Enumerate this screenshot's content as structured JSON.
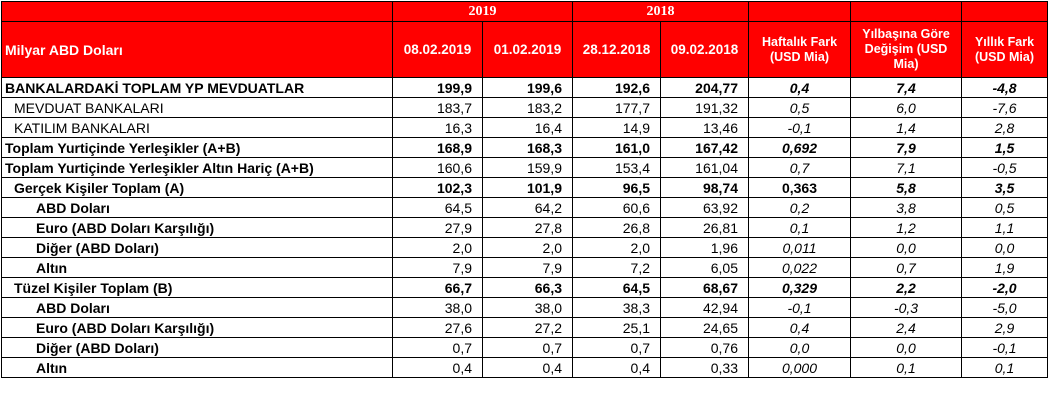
{
  "header": {
    "year_2019": "2019",
    "year_2018": "2018",
    "unit_label": "Milyar ABD Doları",
    "dates": [
      "08.02.2019",
      "01.02.2019",
      "28.12.2018",
      "09.02.2018"
    ],
    "weekly_diff": "Haftalık Fark (USD Mia)",
    "ytd_change": "Yılbaşına Göre Değişim (USD Mia)",
    "annual_diff": "Yıllık Fark (USD Mia)"
  },
  "rows": [
    {
      "label": "BANKALARDAKİ TOPLAM YP MEVDUATLAR",
      "v1": "199,9",
      "v2": "199,6",
      "v3": "192,6",
      "v4": "204,77",
      "d1": "0,4",
      "d2": "7,4",
      "d3": "-4,8"
    },
    {
      "label": "MEVDUAT BANKALARI",
      "v1": "183,7",
      "v2": "183,2",
      "v3": "177,7",
      "v4": "191,32",
      "d1": "0,5",
      "d2": "6,0",
      "d3": "-7,6"
    },
    {
      "label": "KATILIM BANKALARI",
      "v1": "16,3",
      "v2": "16,4",
      "v3": "14,9",
      "v4": "13,46",
      "d1": "-0,1",
      "d2": "1,4",
      "d3": "2,8"
    },
    {
      "label": "Toplam Yurtiçinde Yerleşikler (A+B)",
      "v1": "168,9",
      "v2": "168,3",
      "v3": "161,0",
      "v4": "167,42",
      "d1": "0,692",
      "d2": "7,9",
      "d3": "1,5"
    },
    {
      "label": "Toplam Yurtiçinde Yerleşikler Altın Hariç (A+B)",
      "v1": "160,6",
      "v2": "159,9",
      "v3": "153,4",
      "v4": "161,04",
      "d1": "0,7",
      "d2": "7,1",
      "d3": "-0,5"
    },
    {
      "label": "Gerçek Kişiler Toplam (A)",
      "v1": "102,3",
      "v2": "101,9",
      "v3": "96,5",
      "v4": "98,74",
      "d1": "0,363",
      "d2": "5,8",
      "d3": "3,5"
    },
    {
      "label": "ABD Doları",
      "v1": "64,5",
      "v2": "64,2",
      "v3": "60,6",
      "v4": "63,92",
      "d1": "0,2",
      "d2": "3,8",
      "d3": "0,5"
    },
    {
      "label": "Euro (ABD Doları Karşılığı)",
      "v1": "27,9",
      "v2": "27,8",
      "v3": "26,8",
      "v4": "26,81",
      "d1": "0,1",
      "d2": "1,2",
      "d3": "1,1"
    },
    {
      "label": "Diğer (ABD Doları)",
      "v1": "2,0",
      "v2": "2,0",
      "v3": "2,0",
      "v4": "1,96",
      "d1": "0,011",
      "d2": "0,0",
      "d3": "0,0"
    },
    {
      "label": "Altın",
      "v1": "7,9",
      "v2": "7,9",
      "v3": "7,2",
      "v4": "6,05",
      "d1": "0,022",
      "d2": "0,7",
      "d3": "1,9"
    },
    {
      "label": "Tüzel Kişiler Toplam (B)",
      "v1": "66,7",
      "v2": "66,3",
      "v3": "64,5",
      "v4": "68,67",
      "d1": "0,329",
      "d2": "2,2",
      "d3": "-2,0"
    },
    {
      "label": "ABD Doları",
      "v1": "38,0",
      "v2": "38,0",
      "v3": "38,3",
      "v4": "42,94",
      "d1": "-0,1",
      "d2": "-0,3",
      "d3": "-5,0"
    },
    {
      "label": "Euro (ABD Doları Karşılığı)",
      "v1": "27,6",
      "v2": "27,2",
      "v3": "25,1",
      "v4": "24,65",
      "d1": "0,4",
      "d2": "2,4",
      "d3": "2,9"
    },
    {
      "label": "Diğer (ABD Doları)",
      "v1": "0,7",
      "v2": "0,7",
      "v3": "0,7",
      "v4": "0,76",
      "d1": "0,0",
      "d2": "0,0",
      "d3": "-0,1"
    },
    {
      "label": "Altın",
      "v1": "0,4",
      "v2": "0,4",
      "v3": "0,4",
      "v4": "0,33",
      "d1": "0,000",
      "d2": "0,1",
      "d3": "0,1"
    }
  ]
}
